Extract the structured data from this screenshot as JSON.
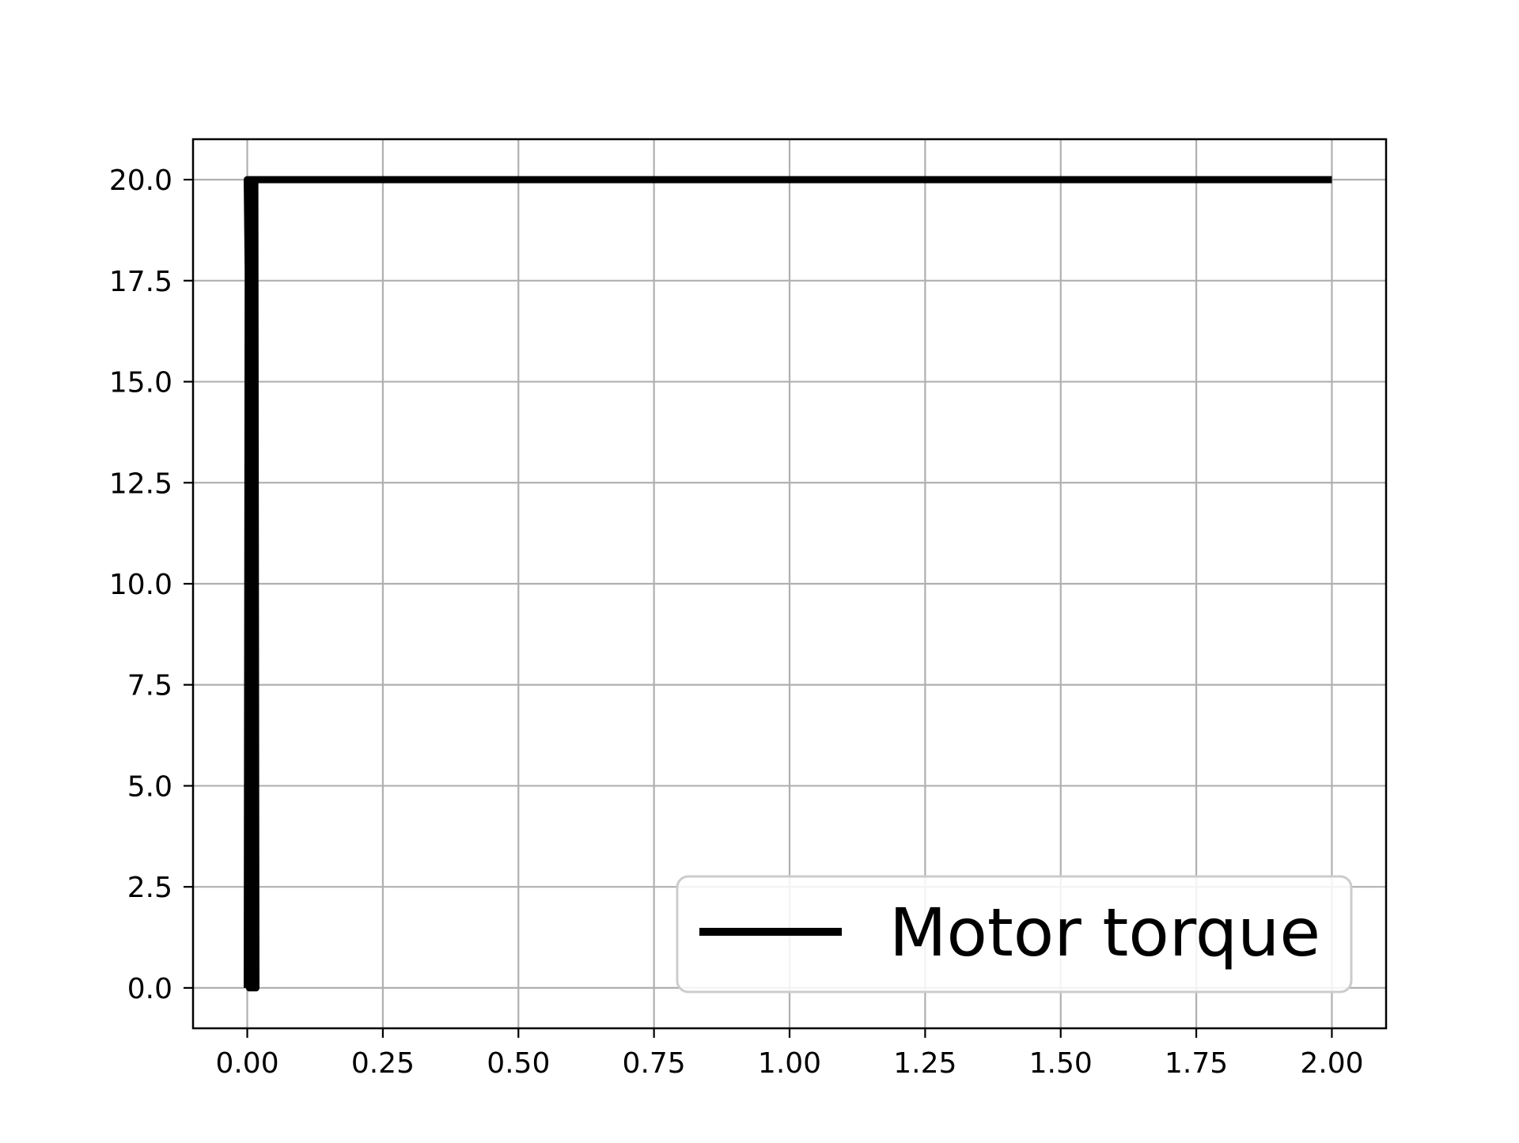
{
  "chart_data": {
    "type": "line",
    "title": "",
    "xlabel": "",
    "ylabel": "",
    "xlim": [
      -0.1,
      2.1
    ],
    "ylim": [
      -1.0,
      21.0
    ],
    "x_ticks": [
      0.0,
      0.25,
      0.5,
      0.75,
      1.0,
      1.25,
      1.5,
      1.75,
      2.0
    ],
    "x_tick_labels": [
      "0.00",
      "0.25",
      "0.50",
      "0.75",
      "1.00",
      "1.25",
      "1.50",
      "1.75",
      "2.00"
    ],
    "y_ticks": [
      0.0,
      2.5,
      5.0,
      7.5,
      10.0,
      12.5,
      15.0,
      17.5,
      20.0
    ],
    "y_tick_labels": [
      "0.0",
      "2.5",
      "5.0",
      "7.5",
      "10.0",
      "12.5",
      "15.0",
      "17.5",
      "20.0"
    ],
    "grid": true,
    "legend_position": "lower-right",
    "series": [
      {
        "name": "Motor torque",
        "color": "#000000",
        "x": [
          0.0,
          0.002,
          0.004,
          0.006,
          0.008,
          0.01,
          0.012,
          0.014,
          0.016,
          0.0,
          0.02,
          0.5,
          1.0,
          1.5,
          2.0
        ],
        "y": [
          0.0,
          20.0,
          0.0,
          20.0,
          0.0,
          20.0,
          0.0,
          20.0,
          0.0,
          20.0,
          20.0,
          20.0,
          20.0,
          20.0,
          20.0
        ]
      }
    ]
  }
}
